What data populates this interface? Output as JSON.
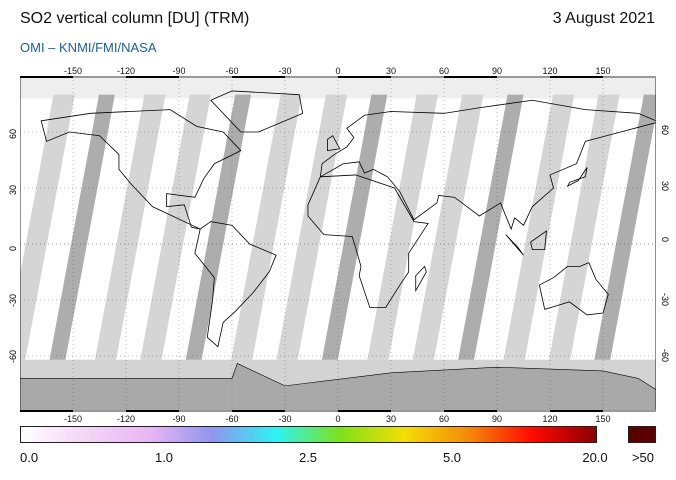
{
  "header": {
    "title": "SO2 vertical column [DU] (TRM)",
    "date": "3 August 2021",
    "source": "OMI  –  KNMI/FMI/NASA"
  },
  "map": {
    "projection": "equirectangular",
    "lon_range": [
      -180,
      180
    ],
    "lat_range": [
      -90,
      90
    ],
    "lon_ticks": [
      "-150",
      "-120",
      "-90",
      "-60",
      "-30",
      "0",
      "30",
      "60",
      "90",
      "120",
      "150"
    ],
    "lat_ticks": [
      "60",
      "30",
      "0",
      "-30",
      "-60"
    ],
    "colors": {
      "swath_light": "#d3d3d3",
      "swath_dark": "#a9a9a9",
      "antarctica": "#a9a9a9",
      "coast": "#000000"
    }
  },
  "colorbar": {
    "labels": [
      "0.0",
      "1.0",
      "2.5",
      "5.0",
      "20.0"
    ],
    "overflow_label": ">50",
    "stops": [
      "#ffffff",
      "#f3d6f5",
      "#e9b6f5",
      "#8f96ee",
      "#2ef2f5",
      "#7ee21a",
      "#f4dd08",
      "#f48a0a",
      "#ff0a00",
      "#8b0000"
    ],
    "overflow_color": "#5a0000"
  }
}
